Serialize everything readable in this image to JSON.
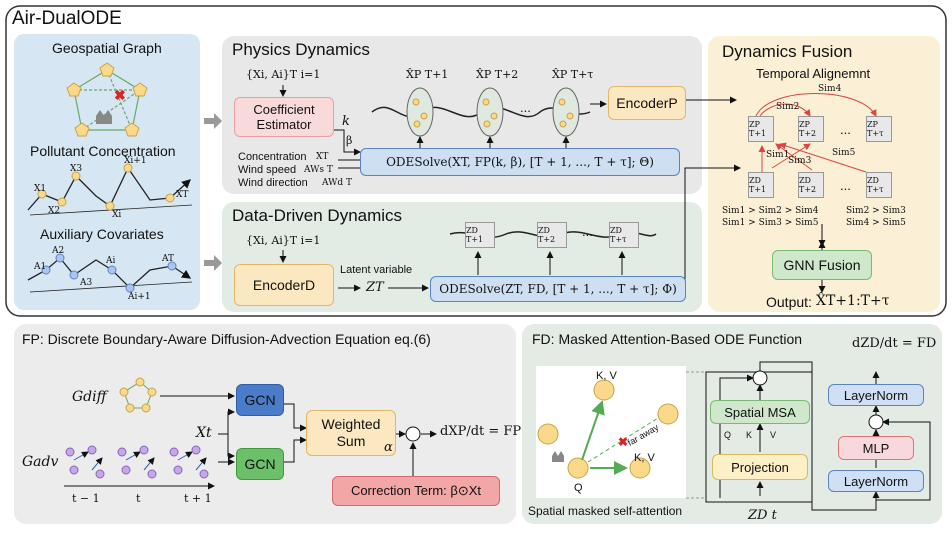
{
  "main_title": "Air-DualODE",
  "left_panel": {
    "geo_graph": "Geospatial Graph",
    "pollutant": "Pollutant Concentration",
    "auxiliary": "Auxiliary Covariates",
    "pollutant_nodes": [
      "X1",
      "X2",
      "X3",
      "Xi+1",
      "Xi",
      "XT"
    ],
    "aux_nodes": [
      "A1",
      "A2",
      "A3",
      "Ai",
      "Ai+1",
      "AT"
    ]
  },
  "physics": {
    "title": "Physics Dynamics",
    "input_set": "{Xi, Ai}T i=1",
    "coeff_line1": "Coefficient",
    "coeff_line2": "Estimator",
    "k": "k",
    "beta": "β",
    "inputs": [
      "Concentration",
      "Wind speed",
      "Wind direction"
    ],
    "input_syms": [
      "XT",
      "AWs T",
      "AWd T"
    ],
    "ode": "ODESolve(XT, FP(k, β), [T + 1, ..., T + τ]; Θ)",
    "outputs": [
      "X̂P T+1",
      "X̂P T+2",
      "X̂P T+τ"
    ],
    "dots": "...",
    "encoder": "EncoderP"
  },
  "datadriven": {
    "title": "Data-Driven Dynamics",
    "input_set": "{Xi, Ai}T i=1",
    "encoder": "EncoderD",
    "latent": "Latent variable",
    "zt": "ZT",
    "ode": "ODESolve(ZT, FD, [T + 1, ..., T + τ]; Φ)",
    "outputs": [
      "ZD T+1",
      "ZD T+2",
      "ZD T+τ"
    ],
    "dots": "..."
  },
  "fusion": {
    "title": "Dynamics Fusion",
    "align": "Temporal Alignemnt",
    "top_boxes": [
      "ZP T+1",
      "ZP T+2",
      "ZP T+τ"
    ],
    "bottom_boxes": [
      "ZD T+1",
      "ZD T+2",
      "ZD T+τ"
    ],
    "sims": [
      "Sim1",
      "Sim2",
      "Sim3",
      "Sim4",
      "Sim5"
    ],
    "ineq": [
      "Sim1 > Sim2 > Sim4",
      "Sim2 > Sim3",
      "Sim1 > Sim3 > Sim5",
      "Sim4 > Sim5"
    ],
    "gnn": "GNN Fusion",
    "output_label": "Output:",
    "output_sym": "X̂T+1:T+τ",
    "dots": "..."
  },
  "fp_panel": {
    "title": "FP: Discrete Boundary-Aware Diffusion-Advection Equation eq.(6)",
    "gdiff": "Gdiff",
    "gadv": "Gadv",
    "xt": "Xt",
    "gcn1": "GCN",
    "gcn2": "GCN",
    "wsum1": "Weighted",
    "wsum2": "Sum",
    "alpha": "α",
    "plus": "⊕",
    "deriv": "dXP/dt = FP",
    "correction": "Correction Term: β⊙Xt",
    "times": [
      "t − 1",
      "t",
      "t + 1"
    ]
  },
  "fd_panel": {
    "title": "FD: Masked Attention-Based ODE Function",
    "deriv": "dZD/dt = FD",
    "kv1": "K, V",
    "kv2": "K, V",
    "q": "Q",
    "far": "far away",
    "caption": "Spatial masked self-attention",
    "msa": "Spatial MSA",
    "qkv": [
      "Q",
      "K",
      "V"
    ],
    "projection": "Projection",
    "ztd": "ZD t",
    "layernorm1": "LayerNorm",
    "layernorm2": "LayerNorm",
    "mlp": "MLP",
    "plus": "⊕"
  },
  "colors": {
    "left_panel": "#d6e6f2",
    "physics_panel": "#e8e8e8",
    "data_panel": "#e2ebe4",
    "fusion_panel": "#fbefd6",
    "coeff": "#f8dada",
    "encoder": "#fbe7c0",
    "ode": "#cfdff2",
    "gcn_blue": "#4a7cc9",
    "gcn_green": "#6cc06a",
    "correction": "#f2a6a6",
    "msa": "#cfe8cc",
    "projection": "#fdf0c6",
    "layernorm": "#cfe0f5",
    "mlp": "#f8d8dc"
  }
}
